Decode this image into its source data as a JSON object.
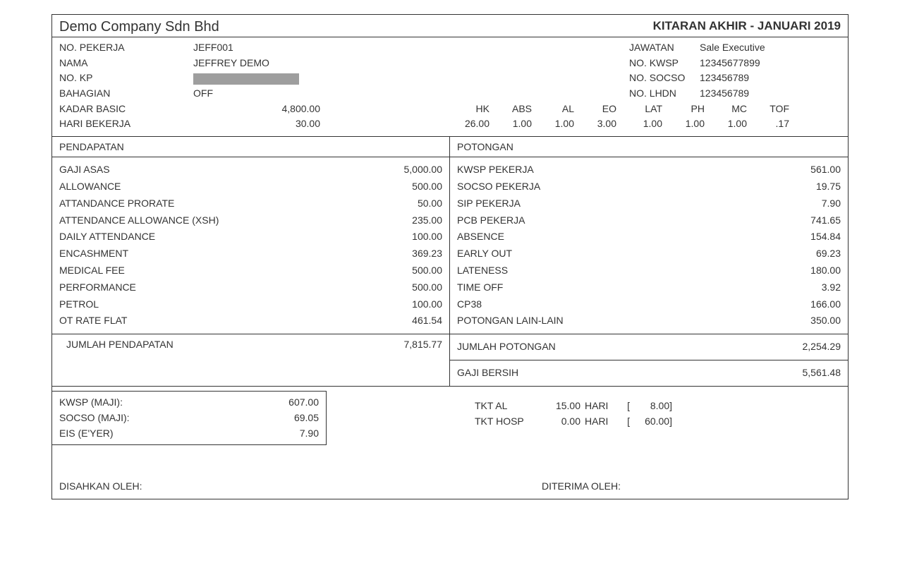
{
  "header": {
    "company": "Demo Company Sdn Bhd",
    "cycle": "KITARAN AKHIR  -  JANUARI 2019"
  },
  "employee": {
    "no_pekerja_lbl": "NO. PEKERJA",
    "no_pekerja": "JEFF001",
    "nama_lbl": "NAMA",
    "nama": "JEFFREY DEMO",
    "no_kp_lbl": "NO. KP",
    "bahagian_lbl": "BAHAGIAN",
    "bahagian": "OFF",
    "jawatan_lbl": "JAWATAN",
    "jawatan": "Sale Executive",
    "no_kwsp_lbl": "NO. KWSP",
    "no_kwsp": "12345677899",
    "no_socso_lbl": "NO. SOCSO",
    "no_socso": "123456789",
    "no_lhdn_lbl": "NO. LHDN",
    "no_lhdn": "123456789",
    "kadar_basic_lbl": "KADAR BASIC",
    "kadar_basic": "4,800.00",
    "hari_bekerja_lbl": "HARI BEKERJA",
    "hari_bekerja": "30.00"
  },
  "attendance": {
    "cols": [
      "HK",
      "ABS",
      "AL",
      "EO",
      "LAT",
      "PH",
      "MC",
      "TOF"
    ],
    "vals": [
      "26.00",
      "1.00",
      "1.00",
      "3.00",
      "1.00",
      "1.00",
      "1.00",
      ".17"
    ]
  },
  "sections": {
    "pendapatan_lbl": "PENDAPATAN",
    "potongan_lbl": "POTONGAN",
    "jumlah_pendapatan_lbl": "JUMLAH PENDAPATAN",
    "jumlah_pendapatan": "7,815.77",
    "jumlah_potongan_lbl": "JUMLAH POTONGAN",
    "jumlah_potongan": "2,254.29",
    "gaji_bersih_lbl": "GAJI BERSIH",
    "gaji_bersih": "5,561.48"
  },
  "earnings": [
    {
      "label": "GAJI ASAS",
      "value": "5,000.00"
    },
    {
      "label": "ALLOWANCE",
      "value": "500.00"
    },
    {
      "label": "ATTANDANCE PRORATE",
      "value": "50.00"
    },
    {
      "label": "ATTENDANCE ALLOWANCE (XSH)",
      "value": "235.00"
    },
    {
      "label": "DAILY ATTENDANCE",
      "value": "100.00"
    },
    {
      "label": "ENCASHMENT",
      "value": "369.23"
    },
    {
      "label": "MEDICAL FEE",
      "value": "500.00"
    },
    {
      "label": "PERFORMANCE",
      "value": "500.00"
    },
    {
      "label": "PETROL",
      "value": "100.00"
    },
    {
      "label": "OT RATE FLAT",
      "value": "461.54"
    }
  ],
  "deductions": [
    {
      "label": "KWSP PEKERJA",
      "value": "561.00"
    },
    {
      "label": "SOCSO PEKERJA",
      "value": "19.75"
    },
    {
      "label": "SIP PEKERJA",
      "value": "7.90"
    },
    {
      "label": "PCB PEKERJA",
      "value": "741.65"
    },
    {
      "label": "ABSENCE",
      "value": "154.84"
    },
    {
      "label": "EARLY OUT",
      "value": "69.23"
    },
    {
      "label": "LATENESS",
      "value": "180.00"
    },
    {
      "label": "TIME OFF",
      "value": "3.92"
    },
    {
      "label": "CP38",
      "value": "166.00"
    },
    {
      "label": "POTONGAN LAIN-LAIN",
      "value": "350.00"
    }
  ],
  "employer": [
    {
      "label": "KWSP (MAJI):",
      "value": "607.00"
    },
    {
      "label": "SOCSO (MAJI):",
      "value": "69.05"
    },
    {
      "label": "EIS (E'YER)",
      "value": "7.90"
    }
  ],
  "entitlements": [
    {
      "label": "TKT  AL",
      "v1": "15.00",
      "unit": "HARI",
      "open": "[",
      "v2": "8.00]"
    },
    {
      "label": "TKT  HOSP",
      "v1": "0.00",
      "unit": "HARI",
      "open": "[",
      "v2": "60.00]"
    }
  ],
  "sign": {
    "disahkan": "DISAHKAN OLEH:",
    "diterima": "DITERIMA OLEH:"
  }
}
